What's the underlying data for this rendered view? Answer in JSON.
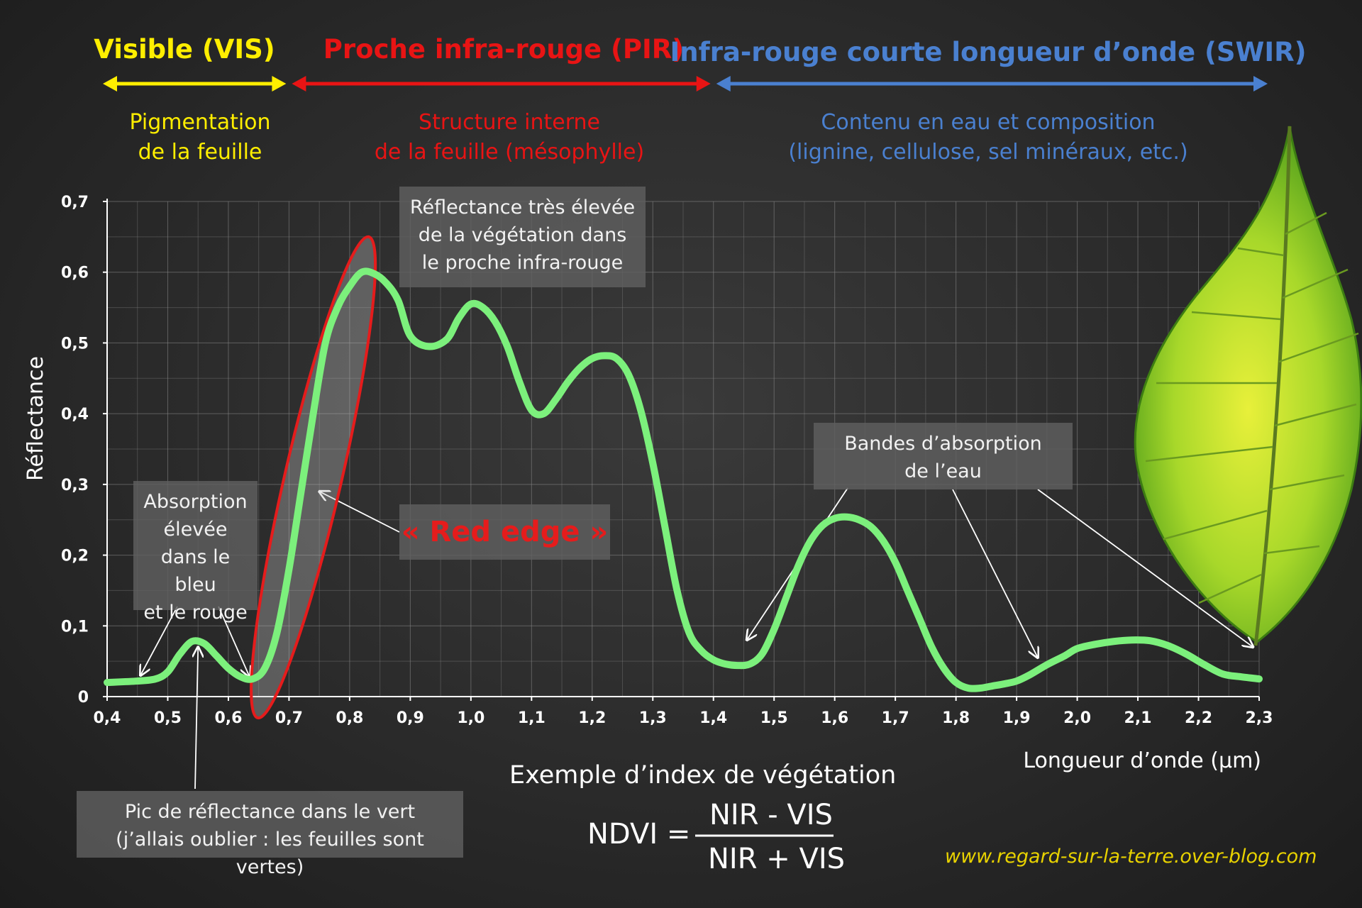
{
  "chart_data": {
    "type": "line",
    "xlabel": "Longueur d’onde (µm)",
    "ylabel": "Réflectance",
    "xlim": [
      0.4,
      2.3
    ],
    "ylim": [
      0,
      0.7
    ],
    "x_ticks": [
      "0,4",
      "0,5",
      "0,6",
      "0,7",
      "0,8",
      "0,9",
      "1,0",
      "1,1",
      "1,2",
      "1,3",
      "1,4",
      "1,5",
      "1,6",
      "1,7",
      "1,8",
      "1,9",
      "2,0",
      "2,1",
      "2,2",
      "2,3"
    ],
    "y_ticks": [
      "0",
      "0,1",
      "0,2",
      "0,3",
      "0,4",
      "0,5",
      "0,6",
      "0,7"
    ],
    "grid": true,
    "series": [
      {
        "color": "#7cf07c",
        "points": [
          [
            0.4,
            0.02
          ],
          [
            0.45,
            0.022
          ],
          [
            0.48,
            0.025
          ],
          [
            0.5,
            0.035
          ],
          [
            0.52,
            0.06
          ],
          [
            0.54,
            0.078
          ],
          [
            0.56,
            0.075
          ],
          [
            0.58,
            0.058
          ],
          [
            0.6,
            0.04
          ],
          [
            0.62,
            0.028
          ],
          [
            0.64,
            0.025
          ],
          [
            0.66,
            0.04
          ],
          [
            0.68,
            0.09
          ],
          [
            0.7,
            0.18
          ],
          [
            0.72,
            0.29
          ],
          [
            0.74,
            0.4
          ],
          [
            0.76,
            0.5
          ],
          [
            0.78,
            0.55
          ],
          [
            0.8,
            0.58
          ],
          [
            0.82,
            0.6
          ],
          [
            0.84,
            0.598
          ],
          [
            0.86,
            0.585
          ],
          [
            0.88,
            0.56
          ],
          [
            0.9,
            0.51
          ],
          [
            0.93,
            0.495
          ],
          [
            0.96,
            0.505
          ],
          [
            0.98,
            0.535
          ],
          [
            1.0,
            0.555
          ],
          [
            1.02,
            0.55
          ],
          [
            1.04,
            0.53
          ],
          [
            1.06,
            0.495
          ],
          [
            1.08,
            0.445
          ],
          [
            1.1,
            0.405
          ],
          [
            1.12,
            0.4
          ],
          [
            1.14,
            0.42
          ],
          [
            1.16,
            0.445
          ],
          [
            1.18,
            0.465
          ],
          [
            1.2,
            0.478
          ],
          [
            1.22,
            0.482
          ],
          [
            1.24,
            0.478
          ],
          [
            1.26,
            0.455
          ],
          [
            1.28,
            0.405
          ],
          [
            1.3,
            0.33
          ],
          [
            1.32,
            0.24
          ],
          [
            1.34,
            0.15
          ],
          [
            1.36,
            0.09
          ],
          [
            1.38,
            0.065
          ],
          [
            1.4,
            0.052
          ],
          [
            1.42,
            0.046
          ],
          [
            1.44,
            0.044
          ],
          [
            1.46,
            0.046
          ],
          [
            1.48,
            0.06
          ],
          [
            1.5,
            0.095
          ],
          [
            1.52,
            0.14
          ],
          [
            1.54,
            0.185
          ],
          [
            1.56,
            0.22
          ],
          [
            1.58,
            0.242
          ],
          [
            1.6,
            0.252
          ],
          [
            1.62,
            0.254
          ],
          [
            1.64,
            0.25
          ],
          [
            1.66,
            0.24
          ],
          [
            1.68,
            0.22
          ],
          [
            1.7,
            0.19
          ],
          [
            1.72,
            0.15
          ],
          [
            1.74,
            0.11
          ],
          [
            1.76,
            0.07
          ],
          [
            1.78,
            0.04
          ],
          [
            1.8,
            0.02
          ],
          [
            1.82,
            0.012
          ],
          [
            1.84,
            0.012
          ],
          [
            1.86,
            0.015
          ],
          [
            1.88,
            0.018
          ],
          [
            1.9,
            0.022
          ],
          [
            1.92,
            0.03
          ],
          [
            1.95,
            0.045
          ],
          [
            1.98,
            0.058
          ],
          [
            2.0,
            0.068
          ],
          [
            2.03,
            0.074
          ],
          [
            2.06,
            0.078
          ],
          [
            2.09,
            0.08
          ],
          [
            2.12,
            0.079
          ],
          [
            2.15,
            0.072
          ],
          [
            2.18,
            0.06
          ],
          [
            2.21,
            0.045
          ],
          [
            2.24,
            0.032
          ],
          [
            2.27,
            0.028
          ],
          [
            2.3,
            0.025
          ]
        ]
      }
    ]
  },
  "bands": [
    {
      "title": "Visible (VIS)",
      "desc": [
        "Pigmentation",
        "de la feuille"
      ],
      "color": "#ffee00",
      "range": [
        0.4,
        0.7
      ]
    },
    {
      "title": "Proche infra-rouge (PIR)",
      "desc": [
        "Structure interne",
        "de la feuille (mésophylle)"
      ],
      "color": "#e81414",
      "range": [
        0.7,
        1.4
      ]
    },
    {
      "title": "Infra-rouge courte longueur d’onde (SWIR)",
      "desc": [
        "Contenu en eau et composition",
        "(lignine, cellulose, sel minéraux, etc.)"
      ],
      "color": "#4a80d0",
      "range": [
        1.4,
        2.3
      ]
    }
  ],
  "annotations": {
    "high_reflectance": [
      "Réflectance très élevée",
      "de la végétation dans",
      "le proche infra-rouge"
    ],
    "absorption": [
      "Absorption",
      "élevée",
      "dans le bleu",
      "et le rouge"
    ],
    "red_edge": "« Red edge »",
    "water_bands": [
      "Bandes d’absorption",
      "de l’eau"
    ],
    "green_peak": [
      "Pic de réflectance dans le vert",
      "(j’allais oublier : les feuilles sont vertes)"
    ]
  },
  "ndvi": {
    "title": "Exemple d’index de végétation",
    "label": "NDVI =",
    "numerator": "NIR - VIS",
    "denominator": "NIR + VIS"
  },
  "website": "www.regard-sur-la-terre.over-blog.com"
}
